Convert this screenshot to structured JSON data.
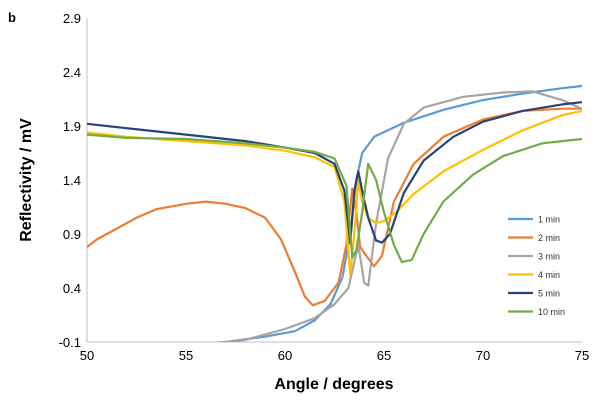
{
  "panel_label": "b",
  "chart_data": {
    "type": "line",
    "title": "",
    "xlabel": "Angle / degrees",
    "ylabel": "Reflectivity / mV",
    "xlim": [
      50,
      75
    ],
    "ylim": [
      -0.1,
      2.9
    ],
    "xticks": [
      50,
      55,
      60,
      65,
      70,
      75
    ],
    "yticks": [
      -0.1,
      0.4,
      0.9,
      1.4,
      1.9,
      2.4,
      2.9
    ],
    "ytick_labels": [
      "-0.1",
      "0.4",
      "0.9",
      "1.4",
      "1.9",
      "2.4",
      "2.9"
    ],
    "grid": false,
    "legend_position": "bottom-right",
    "series": [
      {
        "name": "1 min",
        "color": "#5b9bd5",
        "points": [
          [
            50,
            -0.2
          ],
          [
            54,
            -0.15
          ],
          [
            57,
            -0.1
          ],
          [
            59,
            -0.05
          ],
          [
            60.5,
            0.0
          ],
          [
            61.5,
            0.1
          ],
          [
            62.3,
            0.25
          ],
          [
            62.9,
            0.5
          ],
          [
            63.3,
            0.9
          ],
          [
            63.6,
            1.4
          ],
          [
            63.9,
            1.65
          ],
          [
            64.5,
            1.8
          ],
          [
            66,
            1.93
          ],
          [
            68,
            2.05
          ],
          [
            70,
            2.14
          ],
          [
            72,
            2.2
          ],
          [
            74,
            2.25
          ],
          [
            75,
            2.27
          ]
        ]
      },
      {
        "name": "2 min",
        "color": "#ed7d31",
        "points": [
          [
            50,
            0.78
          ],
          [
            50.5,
            0.85
          ],
          [
            51.5,
            0.95
          ],
          [
            52.5,
            1.05
          ],
          [
            53.5,
            1.13
          ],
          [
            55,
            1.18
          ],
          [
            56,
            1.2
          ],
          [
            57,
            1.18
          ],
          [
            58,
            1.14
          ],
          [
            59,
            1.05
          ],
          [
            59.8,
            0.85
          ],
          [
            60.5,
            0.55
          ],
          [
            61,
            0.32
          ],
          [
            61.4,
            0.24
          ],
          [
            62,
            0.28
          ],
          [
            62.7,
            0.45
          ],
          [
            63.1,
            0.8
          ],
          [
            63.4,
            1.32
          ],
          [
            63.6,
            1.1
          ],
          [
            63.8,
            0.78
          ],
          [
            64.1,
            0.7
          ],
          [
            64.5,
            0.6
          ],
          [
            64.9,
            0.7
          ],
          [
            65.5,
            1.2
          ],
          [
            66.5,
            1.55
          ],
          [
            68,
            1.8
          ],
          [
            70,
            1.96
          ],
          [
            72,
            2.04
          ],
          [
            74,
            2.06
          ],
          [
            75,
            2.06
          ]
        ]
      },
      {
        "name": "3 min",
        "color": "#a5a5a5",
        "points": [
          [
            50,
            -0.2
          ],
          [
            55,
            -0.15
          ],
          [
            58,
            -0.08
          ],
          [
            60,
            0.02
          ],
          [
            61.5,
            0.12
          ],
          [
            62.5,
            0.25
          ],
          [
            63.2,
            0.4
          ],
          [
            63.7,
            0.8
          ],
          [
            64,
            0.45
          ],
          [
            64.2,
            0.42
          ],
          [
            64.6,
            1.0
          ],
          [
            65.2,
            1.6
          ],
          [
            66,
            1.92
          ],
          [
            67,
            2.07
          ],
          [
            69,
            2.17
          ],
          [
            71,
            2.21
          ],
          [
            72.5,
            2.22
          ],
          [
            74,
            2.14
          ],
          [
            75,
            2.06
          ]
        ]
      },
      {
        "name": "4 min",
        "color": "#ffc000",
        "points": [
          [
            50,
            1.84
          ],
          [
            52,
            1.8
          ],
          [
            55,
            1.76
          ],
          [
            58,
            1.72
          ],
          [
            60,
            1.67
          ],
          [
            61.5,
            1.61
          ],
          [
            62.5,
            1.52
          ],
          [
            63.0,
            1.2
          ],
          [
            63.3,
            0.52
          ],
          [
            63.5,
            0.9
          ],
          [
            63.7,
            1.4
          ],
          [
            63.9,
            1.2
          ],
          [
            64.2,
            1.05
          ],
          [
            64.6,
            1.0
          ],
          [
            65,
            1.02
          ],
          [
            65.6,
            1.1
          ],
          [
            66.5,
            1.27
          ],
          [
            68,
            1.48
          ],
          [
            70,
            1.68
          ],
          [
            72,
            1.86
          ],
          [
            74,
            2.0
          ],
          [
            75,
            2.04
          ]
        ]
      },
      {
        "name": "5 min",
        "color": "#264478",
        "points": [
          [
            50,
            1.92
          ],
          [
            52,
            1.88
          ],
          [
            55,
            1.82
          ],
          [
            58,
            1.76
          ],
          [
            60,
            1.7
          ],
          [
            61.5,
            1.65
          ],
          [
            62.5,
            1.55
          ],
          [
            63.0,
            1.3
          ],
          [
            63.3,
            0.82
          ],
          [
            63.5,
            1.3
          ],
          [
            63.7,
            1.48
          ],
          [
            63.9,
            1.3
          ],
          [
            64.2,
            1.05
          ],
          [
            64.6,
            0.84
          ],
          [
            64.9,
            0.82
          ],
          [
            65.3,
            0.9
          ],
          [
            66,
            1.28
          ],
          [
            67,
            1.58
          ],
          [
            68.5,
            1.8
          ],
          [
            70,
            1.94
          ],
          [
            72,
            2.04
          ],
          [
            74,
            2.1
          ],
          [
            75,
            2.12
          ]
        ]
      },
      {
        "name": "10 min",
        "color": "#70ad47",
        "points": [
          [
            50,
            1.82
          ],
          [
            52,
            1.79
          ],
          [
            55,
            1.78
          ],
          [
            58,
            1.74
          ],
          [
            60,
            1.7
          ],
          [
            61.5,
            1.66
          ],
          [
            62.5,
            1.6
          ],
          [
            63.1,
            1.35
          ],
          [
            63.4,
            0.68
          ],
          [
            63.6,
            0.75
          ],
          [
            63.9,
            1.1
          ],
          [
            64.2,
            1.55
          ],
          [
            64.6,
            1.4
          ],
          [
            65,
            1.1
          ],
          [
            65.5,
            0.8
          ],
          [
            65.9,
            0.64
          ],
          [
            66.4,
            0.66
          ],
          [
            67,
            0.9
          ],
          [
            68,
            1.2
          ],
          [
            69.5,
            1.45
          ],
          [
            71,
            1.62
          ],
          [
            73,
            1.74
          ],
          [
            74,
            1.76
          ],
          [
            75,
            1.78
          ]
        ]
      }
    ]
  }
}
